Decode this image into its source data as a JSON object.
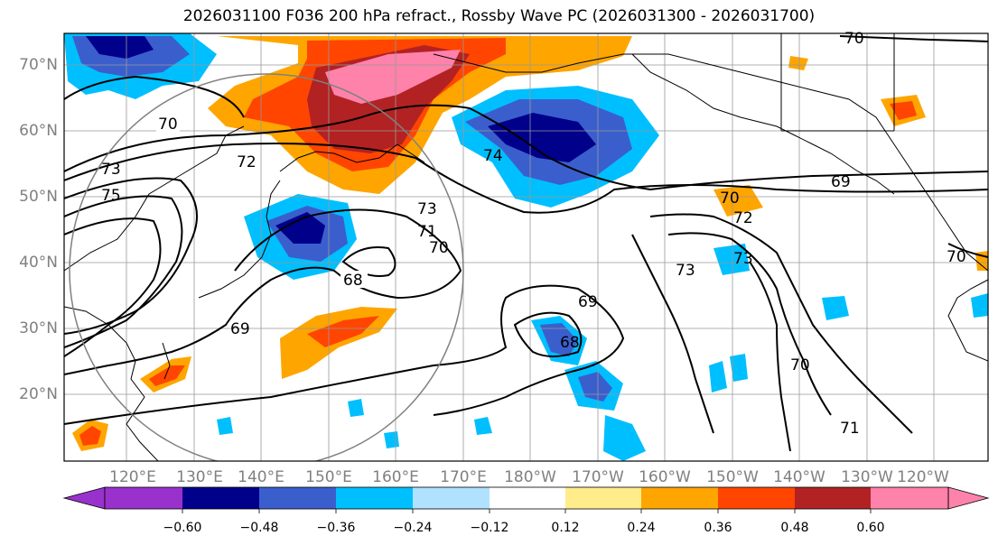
{
  "title": "2026031100 F036 200 hPa refract., Rossby Wave PC (2026031300 - 2026031700)",
  "map": {
    "lat_labels": [
      "70°N",
      "60°N",
      "50°N",
      "40°N",
      "30°N",
      "20°N"
    ],
    "lon_labels": [
      "120°E",
      "130°E",
      "140°E",
      "150°E",
      "160°E",
      "170°E",
      "180°W",
      "170°W",
      "160°W",
      "150°W",
      "140°W",
      "130°W",
      "120°W"
    ],
    "contour_labels": [
      "70",
      "73",
      "75",
      "72",
      "74",
      "73",
      "71",
      "70",
      "68",
      "69",
      "69",
      "68",
      "70",
      "72",
      "73",
      "73",
      "69",
      "70",
      "71",
      "70",
      "70"
    ],
    "contour_color": "#000000",
    "coastline_color": "#000000",
    "gridline_color": "#999999",
    "circle_color": "#808080"
  },
  "colorbar": {
    "ticks": [
      "−0.60",
      "−0.48",
      "−0.36",
      "−0.24",
      "−0.12",
      "0.12",
      "0.24",
      "0.36",
      "0.48",
      "0.60"
    ],
    "colors": [
      "#9932cc",
      "#00008b",
      "#3a5fcd",
      "#00bfff",
      "#b0e2ff",
      "#ffffff",
      "#ffec8b",
      "#ffa500",
      "#ff4500",
      "#b22222",
      "#ff82ab",
      "#ff82ab"
    ]
  }
}
